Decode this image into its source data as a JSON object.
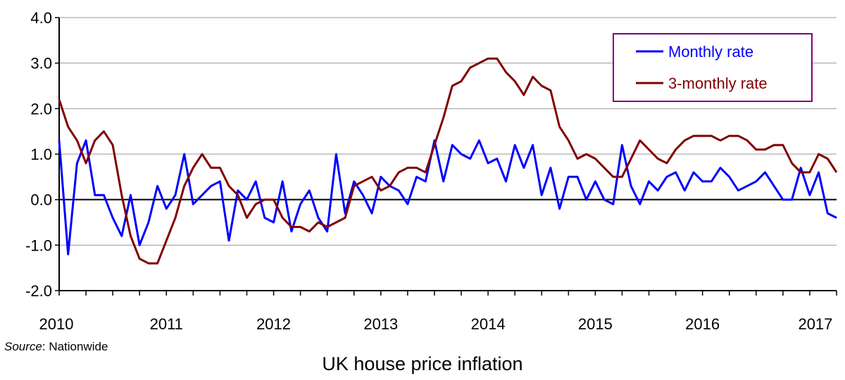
{
  "chart_data": {
    "type": "line",
    "title": "UK house price inflation",
    "source_label": "Source",
    "source_value": ": Nationwide",
    "ylim": [
      -2.0,
      4.0
    ],
    "yticks": [
      "4.0",
      "3.0",
      "2.0",
      "1.0",
      "0.0",
      "-1.0",
      "-2.0"
    ],
    "ytick_values": [
      4,
      3,
      2,
      1,
      0,
      -1,
      -2
    ],
    "xlim": [
      2010,
      2017.25
    ],
    "xticks": [
      "2010",
      "2011",
      "2012",
      "2013",
      "2014",
      "2015",
      "2016",
      "2017"
    ],
    "xtick_values": [
      2010,
      2011,
      2012,
      2013,
      2014,
      2015,
      2016,
      2017
    ],
    "grid": true,
    "legend_position": "top-right",
    "x_start": "2010-01",
    "x_step_months": 1,
    "series": [
      {
        "name": "Monthly rate",
        "color": "#0000FF",
        "values": [
          1.3,
          -1.2,
          0.8,
          1.3,
          0.1,
          0.1,
          -0.4,
          -0.8,
          0.1,
          -1.0,
          -0.5,
          0.3,
          -0.2,
          0.1,
          1.0,
          -0.1,
          0.1,
          0.3,
          0.4,
          -0.9,
          0.2,
          0.0,
          0.4,
          -0.4,
          -0.5,
          0.4,
          -0.7,
          -0.1,
          0.2,
          -0.4,
          -0.7,
          1.0,
          -0.3,
          0.4,
          0.1,
          -0.3,
          0.5,
          0.3,
          0.2,
          -0.1,
          0.5,
          0.4,
          1.3,
          0.4,
          1.2,
          1.0,
          0.9,
          1.3,
          0.8,
          0.9,
          0.4,
          1.2,
          0.7,
          1.2,
          0.1,
          0.7,
          -0.2,
          0.5,
          0.5,
          0.0,
          0.4,
          0.0,
          -0.1,
          1.2,
          0.3,
          -0.1,
          0.4,
          0.2,
          0.5,
          0.6,
          0.2,
          0.6,
          0.4,
          0.4,
          0.7,
          0.5,
          0.2,
          0.3,
          0.4,
          0.6,
          0.3,
          0.0,
          0.0,
          0.7,
          0.1,
          0.6,
          -0.3,
          -0.4
        ]
      },
      {
        "name": "3-monthly rate",
        "color": "#800000",
        "values": [
          2.2,
          1.6,
          1.3,
          0.8,
          1.3,
          1.5,
          1.2,
          0.1,
          -0.8,
          -1.3,
          -1.4,
          -1.4,
          -0.9,
          -0.4,
          0.3,
          0.7,
          1.0,
          0.7,
          0.7,
          0.3,
          0.1,
          -0.4,
          -0.1,
          0.0,
          0.0,
          -0.4,
          -0.6,
          -0.6,
          -0.7,
          -0.5,
          -0.6,
          -0.5,
          -0.4,
          0.3,
          0.4,
          0.5,
          0.2,
          0.3,
          0.6,
          0.7,
          0.7,
          0.6,
          1.2,
          1.8,
          2.5,
          2.6,
          2.9,
          3.0,
          3.1,
          3.1,
          2.8,
          2.6,
          2.3,
          2.7,
          2.5,
          2.4,
          1.6,
          1.3,
          0.9,
          1.0,
          0.9,
          0.7,
          0.5,
          0.5,
          0.9,
          1.3,
          1.1,
          0.9,
          0.8,
          1.1,
          1.3,
          1.4,
          1.4,
          1.4,
          1.3,
          1.4,
          1.4,
          1.3,
          1.1,
          1.1,
          1.2,
          1.2,
          0.8,
          0.6,
          0.6,
          1.0,
          0.9,
          0.6
        ]
      }
    ]
  }
}
